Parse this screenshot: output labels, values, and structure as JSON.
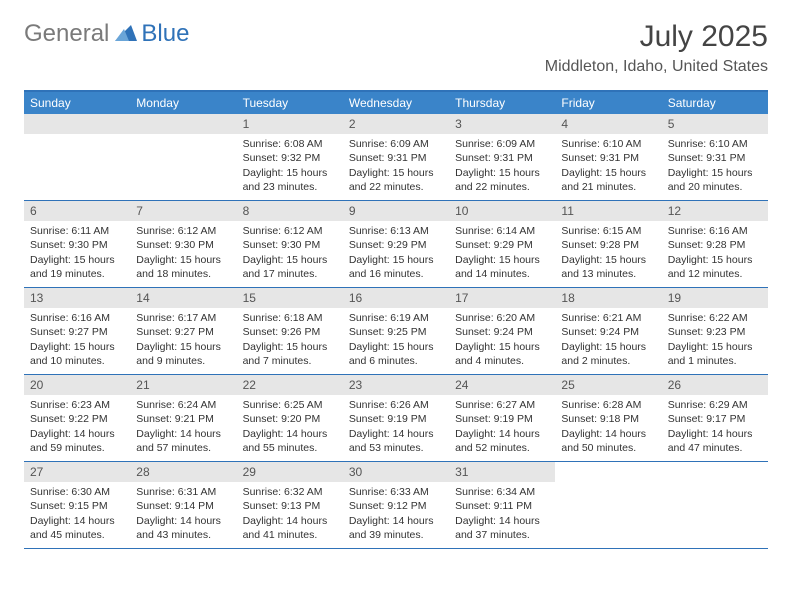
{
  "logo": {
    "general": "General",
    "blue": "Blue"
  },
  "title": "July 2025",
  "location": "Middleton, Idaho, United States",
  "colors": {
    "header_bar": "#3a84c9",
    "border": "#2f72b8",
    "daynum_bg": "#e6e6e6",
    "text": "#333333",
    "logo_gray": "#7a7a7a",
    "logo_blue": "#2f72b8"
  },
  "dow": [
    "Sunday",
    "Monday",
    "Tuesday",
    "Wednesday",
    "Thursday",
    "Friday",
    "Saturday"
  ],
  "weeks": [
    [
      null,
      null,
      {
        "n": "1",
        "rise": "6:08 AM",
        "set": "9:32 PM",
        "dlh": "15",
        "dlm": "23"
      },
      {
        "n": "2",
        "rise": "6:09 AM",
        "set": "9:31 PM",
        "dlh": "15",
        "dlm": "22"
      },
      {
        "n": "3",
        "rise": "6:09 AM",
        "set": "9:31 PM",
        "dlh": "15",
        "dlm": "22"
      },
      {
        "n": "4",
        "rise": "6:10 AM",
        "set": "9:31 PM",
        "dlh": "15",
        "dlm": "21"
      },
      {
        "n": "5",
        "rise": "6:10 AM",
        "set": "9:31 PM",
        "dlh": "15",
        "dlm": "20"
      }
    ],
    [
      {
        "n": "6",
        "rise": "6:11 AM",
        "set": "9:30 PM",
        "dlh": "15",
        "dlm": "19"
      },
      {
        "n": "7",
        "rise": "6:12 AM",
        "set": "9:30 PM",
        "dlh": "15",
        "dlm": "18"
      },
      {
        "n": "8",
        "rise": "6:12 AM",
        "set": "9:30 PM",
        "dlh": "15",
        "dlm": "17"
      },
      {
        "n": "9",
        "rise": "6:13 AM",
        "set": "9:29 PM",
        "dlh": "15",
        "dlm": "16"
      },
      {
        "n": "10",
        "rise": "6:14 AM",
        "set": "9:29 PM",
        "dlh": "15",
        "dlm": "14"
      },
      {
        "n": "11",
        "rise": "6:15 AM",
        "set": "9:28 PM",
        "dlh": "15",
        "dlm": "13"
      },
      {
        "n": "12",
        "rise": "6:16 AM",
        "set": "9:28 PM",
        "dlh": "15",
        "dlm": "12"
      }
    ],
    [
      {
        "n": "13",
        "rise": "6:16 AM",
        "set": "9:27 PM",
        "dlh": "15",
        "dlm": "10"
      },
      {
        "n": "14",
        "rise": "6:17 AM",
        "set": "9:27 PM",
        "dlh": "15",
        "dlm": "9"
      },
      {
        "n": "15",
        "rise": "6:18 AM",
        "set": "9:26 PM",
        "dlh": "15",
        "dlm": "7"
      },
      {
        "n": "16",
        "rise": "6:19 AM",
        "set": "9:25 PM",
        "dlh": "15",
        "dlm": "6"
      },
      {
        "n": "17",
        "rise": "6:20 AM",
        "set": "9:24 PM",
        "dlh": "15",
        "dlm": "4"
      },
      {
        "n": "18",
        "rise": "6:21 AM",
        "set": "9:24 PM",
        "dlh": "15",
        "dlm": "2"
      },
      {
        "n": "19",
        "rise": "6:22 AM",
        "set": "9:23 PM",
        "dlh": "15",
        "dlm": "1"
      }
    ],
    [
      {
        "n": "20",
        "rise": "6:23 AM",
        "set": "9:22 PM",
        "dlh": "14",
        "dlm": "59"
      },
      {
        "n": "21",
        "rise": "6:24 AM",
        "set": "9:21 PM",
        "dlh": "14",
        "dlm": "57"
      },
      {
        "n": "22",
        "rise": "6:25 AM",
        "set": "9:20 PM",
        "dlh": "14",
        "dlm": "55"
      },
      {
        "n": "23",
        "rise": "6:26 AM",
        "set": "9:19 PM",
        "dlh": "14",
        "dlm": "53"
      },
      {
        "n": "24",
        "rise": "6:27 AM",
        "set": "9:19 PM",
        "dlh": "14",
        "dlm": "52"
      },
      {
        "n": "25",
        "rise": "6:28 AM",
        "set": "9:18 PM",
        "dlh": "14",
        "dlm": "50"
      },
      {
        "n": "26",
        "rise": "6:29 AM",
        "set": "9:17 PM",
        "dlh": "14",
        "dlm": "47"
      }
    ],
    [
      {
        "n": "27",
        "rise": "6:30 AM",
        "set": "9:15 PM",
        "dlh": "14",
        "dlm": "45"
      },
      {
        "n": "28",
        "rise": "6:31 AM",
        "set": "9:14 PM",
        "dlh": "14",
        "dlm": "43"
      },
      {
        "n": "29",
        "rise": "6:32 AM",
        "set": "9:13 PM",
        "dlh": "14",
        "dlm": "41"
      },
      {
        "n": "30",
        "rise": "6:33 AM",
        "set": "9:12 PM",
        "dlh": "14",
        "dlm": "39"
      },
      {
        "n": "31",
        "rise": "6:34 AM",
        "set": "9:11 PM",
        "dlh": "14",
        "dlm": "37"
      },
      null,
      null
    ]
  ],
  "labels": {
    "sunrise": "Sunrise:",
    "sunset": "Sunset:",
    "daylight": "Daylight:",
    "hours": "hours",
    "and": "and",
    "minutes": "minutes."
  }
}
